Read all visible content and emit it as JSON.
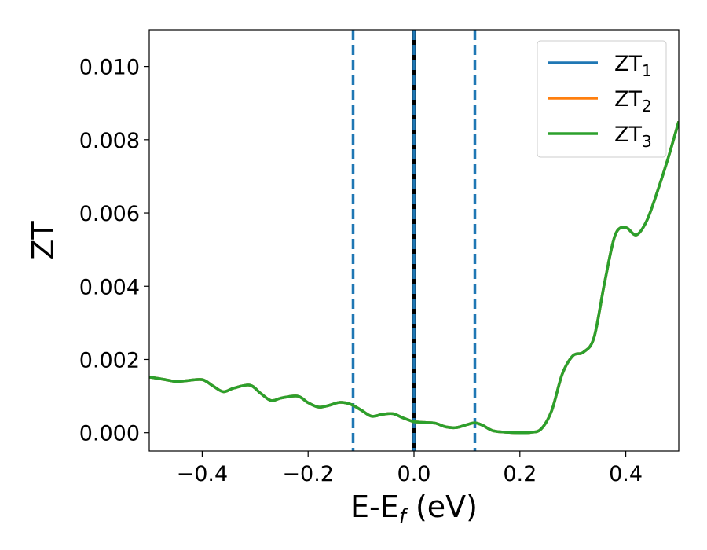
{
  "chart_data": {
    "type": "line",
    "xlabel": "E-E",
    "xlabel_sub": "f",
    "xlabel_unit": " (eV)",
    "ylabel": "ZT",
    "xlim": [
      -0.5,
      0.5
    ],
    "ylim": [
      -0.0005,
      0.011
    ],
    "xticks": [
      -0.4,
      -0.2,
      0.0,
      0.2,
      0.4
    ],
    "xtick_labels": [
      "−0.4",
      "−0.2",
      "0.0",
      "0.2",
      "0.4"
    ],
    "yticks": [
      0.0,
      0.002,
      0.004,
      0.006,
      0.008,
      0.01
    ],
    "ytick_labels": [
      "0.000",
      "0.002",
      "0.004",
      "0.006",
      "0.008",
      "0.010"
    ],
    "legend_position": "top-right",
    "grid": false,
    "x": [
      -0.5,
      -0.47,
      -0.45,
      -0.43,
      -0.4,
      -0.38,
      -0.36,
      -0.34,
      -0.31,
      -0.29,
      -0.27,
      -0.25,
      -0.22,
      -0.2,
      -0.18,
      -0.16,
      -0.14,
      -0.12,
      -0.1,
      -0.08,
      -0.06,
      -0.04,
      -0.02,
      -0.005,
      0.0,
      0.02,
      0.04,
      0.06,
      0.08,
      0.1,
      0.115,
      0.13,
      0.15,
      0.18,
      0.2,
      0.22,
      0.24,
      0.26,
      0.28,
      0.3,
      0.32,
      0.34,
      0.36,
      0.38,
      0.4,
      0.42,
      0.44,
      0.46,
      0.48,
      0.5
    ],
    "series": [
      {
        "name": "ZT",
        "sub": "1",
        "color": "#1f77b4",
        "values": [
          0.00152,
          0.00145,
          0.0014,
          0.00142,
          0.00145,
          0.00128,
          0.00112,
          0.00122,
          0.0013,
          0.00108,
          0.00088,
          0.00095,
          0.001,
          0.00082,
          0.0007,
          0.00075,
          0.00083,
          0.00078,
          0.00062,
          0.00045,
          0.0005,
          0.00052,
          0.0004,
          0.00032,
          0.0003,
          0.00028,
          0.00026,
          0.00016,
          0.00014,
          0.00022,
          0.00027,
          0.0002,
          5e-05,
          1e-05,
          0.0,
          1e-05,
          0.0001,
          0.0006,
          0.0016,
          0.0021,
          0.0022,
          0.0026,
          0.0041,
          0.0054,
          0.0056,
          0.0054,
          0.0058,
          0.0066,
          0.0075,
          0.0085
        ]
      },
      {
        "name": "ZT",
        "sub": "2",
        "color": "#ff7f0e",
        "values": [
          0.00152,
          0.00145,
          0.0014,
          0.00142,
          0.00145,
          0.00128,
          0.00112,
          0.00122,
          0.0013,
          0.00108,
          0.00088,
          0.00095,
          0.001,
          0.00082,
          0.0007,
          0.00075,
          0.00083,
          0.00078,
          0.00062,
          0.00045,
          0.0005,
          0.00052,
          0.0004,
          0.00032,
          0.0003,
          0.00028,
          0.00026,
          0.00016,
          0.00014,
          0.00022,
          0.00027,
          0.0002,
          5e-05,
          1e-05,
          0.0,
          1e-05,
          0.0001,
          0.0006,
          0.0016,
          0.0021,
          0.0022,
          0.0026,
          0.0041,
          0.0054,
          0.0056,
          0.0054,
          0.0058,
          0.0066,
          0.0075,
          0.0085
        ]
      },
      {
        "name": "ZT",
        "sub": "3",
        "color": "#2ca02c",
        "values": [
          0.00152,
          0.00145,
          0.0014,
          0.00142,
          0.00145,
          0.00128,
          0.00112,
          0.00122,
          0.0013,
          0.00108,
          0.00088,
          0.00095,
          0.001,
          0.00082,
          0.0007,
          0.00075,
          0.00083,
          0.00078,
          0.00062,
          0.00045,
          0.0005,
          0.00052,
          0.0004,
          0.00032,
          0.0003,
          0.00028,
          0.00026,
          0.00016,
          0.00014,
          0.00022,
          0.00027,
          0.0002,
          5e-05,
          1e-05,
          0.0,
          1e-05,
          0.0001,
          0.0006,
          0.0016,
          0.0021,
          0.0022,
          0.0026,
          0.0041,
          0.0054,
          0.0056,
          0.0054,
          0.0058,
          0.0066,
          0.0075,
          0.0085
        ]
      }
    ],
    "vlines": [
      {
        "x": -0.115,
        "style": "dashed",
        "color": "#1f77b4"
      },
      {
        "x": 0.0,
        "style": "solid",
        "color": "#000000"
      },
      {
        "x": 0.0,
        "style": "dashed",
        "color": "#1f77b4"
      },
      {
        "x": 0.115,
        "style": "dashed",
        "color": "#1f77b4"
      }
    ]
  }
}
